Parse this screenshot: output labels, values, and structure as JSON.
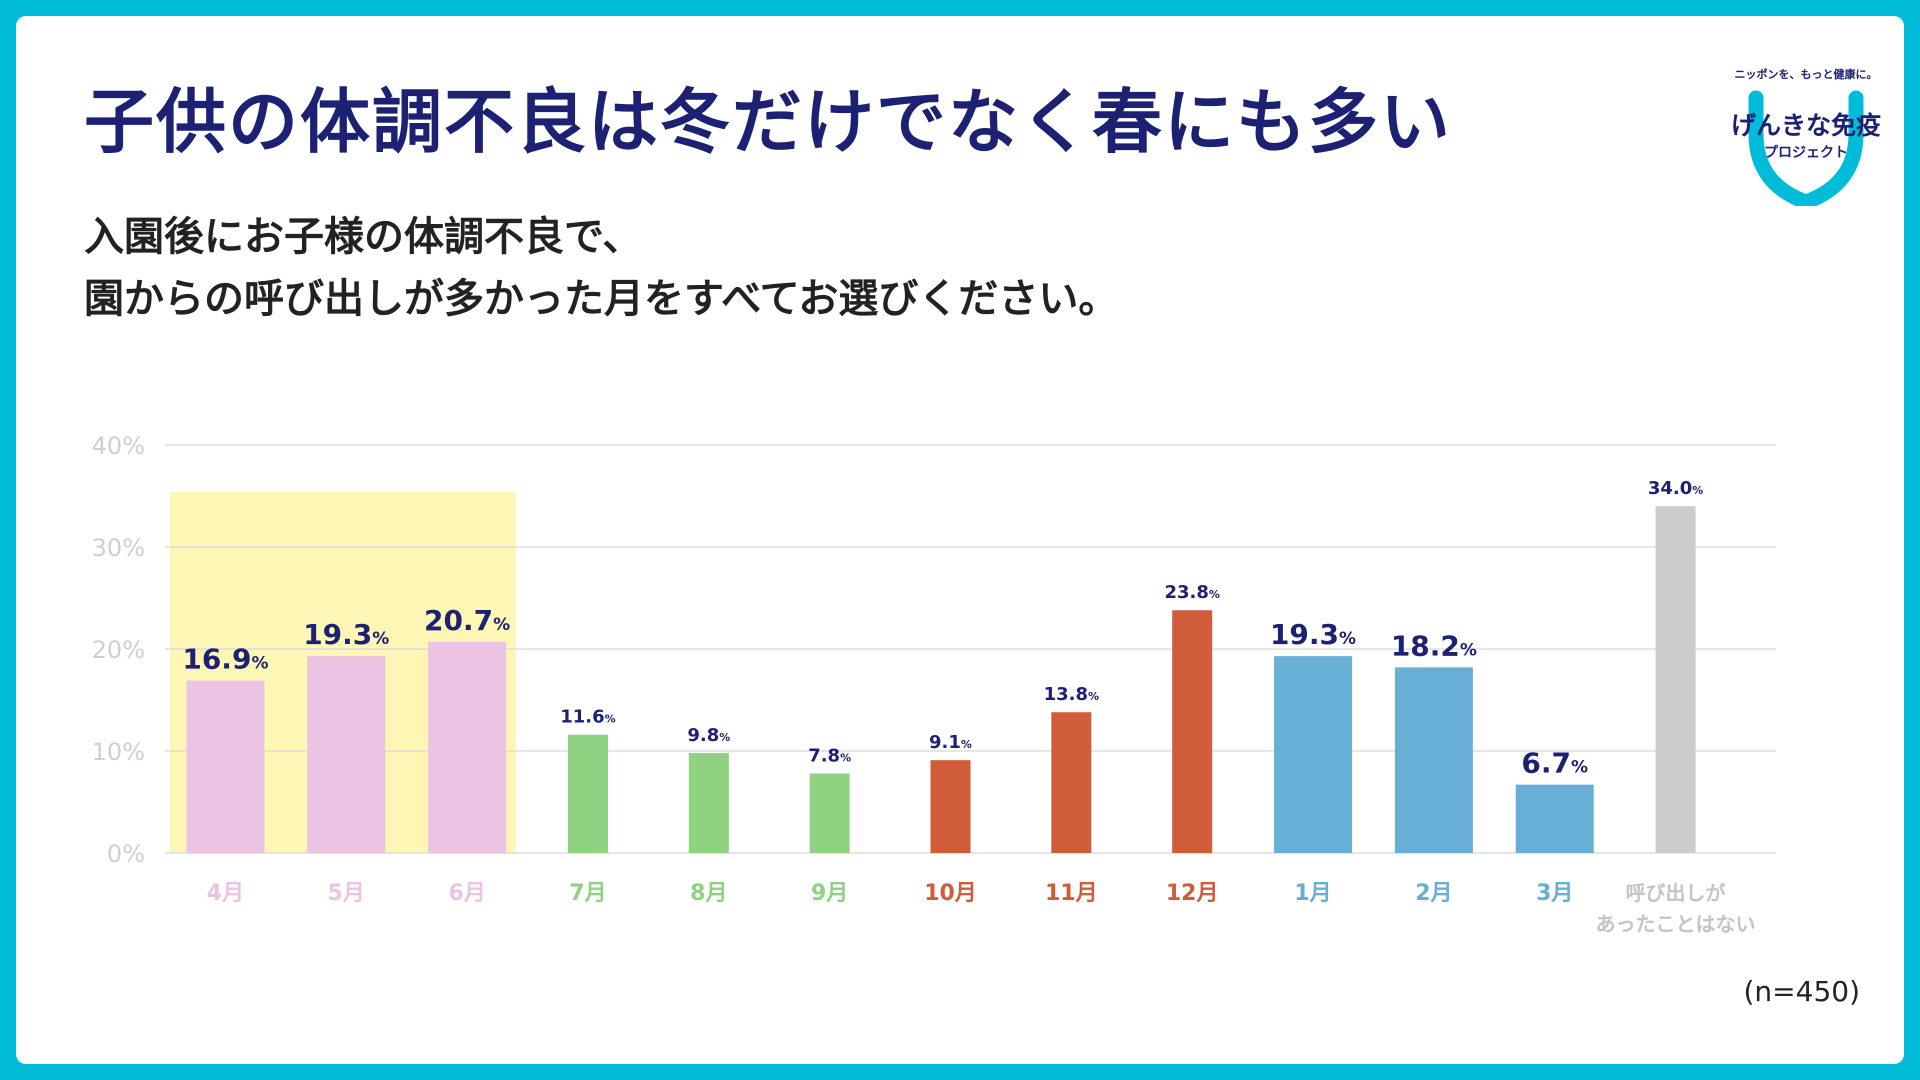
{
  "title": "子供の体調不良は冬だけでなく春にも多い",
  "subtitle": {
    "line1": "入園後にお子様の体調不良で、",
    "line2": "園からの呼び出しが多かった月をすべてお選びください。"
  },
  "logo": {
    "tagline": "ニッポンを、もっと健康に。",
    "main": "げんきな免疫",
    "sub": "プロジェクト",
    "ring_color": "#00bcd9"
  },
  "sample_size": "(n=450)",
  "colors": {
    "spring": "#ecc3e3",
    "summer": "#8fd282",
    "autumn": "#d05c3a",
    "winter": "#68afd6",
    "none": "#cccccc",
    "highlight": "#fdf6b4",
    "value_text": "#1d2174",
    "grid": "#dddddd",
    "axis_text": "#cfcfcf"
  },
  "chart_data": {
    "type": "bar",
    "title": "",
    "xlabel": "",
    "ylabel": "",
    "ylim": [
      0,
      40
    ],
    "yticks": [
      "0%",
      "10%",
      "20%",
      "30%",
      "40%"
    ],
    "grid": true,
    "categories": [
      "4月",
      "5月",
      "6月",
      "7月",
      "8月",
      "9月",
      "10月",
      "11月",
      "12月",
      "1月",
      "2月",
      "3月",
      "呼び出しがあったことはない"
    ],
    "category_lines": [
      [
        "4月"
      ],
      [
        "5月"
      ],
      [
        "6月"
      ],
      [
        "7月"
      ],
      [
        "8月"
      ],
      [
        "9月"
      ],
      [
        "10月"
      ],
      [
        "11月"
      ],
      [
        "12月"
      ],
      [
        "1月"
      ],
      [
        "2月"
      ],
      [
        "3月"
      ],
      [
        "呼び出しが",
        "あったことはない"
      ]
    ],
    "values": [
      16.9,
      19.3,
      20.7,
      11.6,
      9.8,
      7.8,
      9.1,
      13.8,
      23.8,
      19.3,
      18.2,
      6.7,
      34.0
    ],
    "value_labels": [
      "16.9",
      "19.3",
      "20.7",
      "11.6",
      "9.8",
      "7.8",
      "9.1",
      "13.8",
      "23.8",
      "19.3",
      "18.2",
      "6.7",
      "34.0"
    ],
    "value_unit": "%",
    "groups": [
      "spring",
      "spring",
      "spring",
      "summer",
      "summer",
      "summer",
      "autumn",
      "autumn",
      "autumn",
      "winter",
      "winter",
      "winter",
      "none"
    ],
    "emphasized": [
      true,
      true,
      true,
      false,
      false,
      false,
      false,
      false,
      false,
      true,
      true,
      true,
      false
    ],
    "highlighted_categories": [
      "4月",
      "5月",
      "6月"
    ]
  }
}
